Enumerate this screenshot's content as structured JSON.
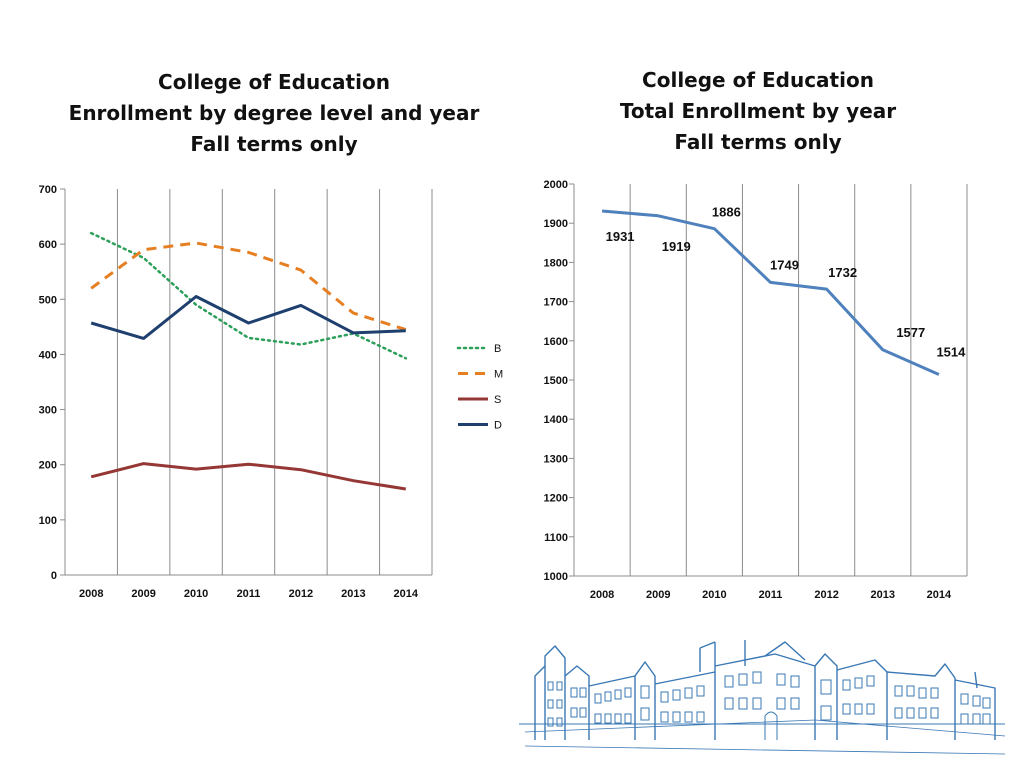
{
  "chart_data": [
    {
      "type": "line",
      "title_lines": [
        "College of Education",
        "Enrollment by degree level and year",
        "Fall terms only"
      ],
      "x": [
        "2008",
        "2009",
        "2010",
        "2011",
        "2012",
        "2013",
        "2014"
      ],
      "ylim": [
        0,
        700
      ],
      "yticks": [
        "0",
        "100",
        "200",
        "300",
        "400",
        "500",
        "600",
        "700"
      ],
      "grid": "vertical",
      "legend_position": "right",
      "series": [
        {
          "name": "B",
          "values": [
            620,
            575,
            490,
            430,
            418,
            438,
            393
          ],
          "color": "#2ca05a",
          "style": "dotted"
        },
        {
          "name": "M",
          "values": [
            520,
            590,
            602,
            585,
            553,
            475,
            445
          ],
          "color": "#e67e22",
          "style": "dashed"
        },
        {
          "name": "S",
          "values": [
            178,
            202,
            192,
            201,
            191,
            171,
            156
          ],
          "color": "#953735",
          "style": "solid"
        },
        {
          "name": "D",
          "values": [
            457,
            429,
            505,
            457,
            489,
            439,
            443
          ],
          "color": "#1f3f6e",
          "style": "solid"
        }
      ]
    },
    {
      "type": "line",
      "title_lines": [
        "College of Education",
        "Total Enrollment by year",
        "Fall terms only"
      ],
      "x": [
        "2008",
        "2009",
        "2010",
        "2011",
        "2012",
        "2013",
        "2014"
      ],
      "ylim": [
        1000,
        2000
      ],
      "yticks": [
        "1000",
        "1100",
        "1200",
        "1300",
        "1400",
        "1500",
        "1600",
        "1700",
        "1800",
        "1900",
        "2000"
      ],
      "grid": "vertical",
      "series": [
        {
          "values": [
            1931,
            1919,
            1886,
            1749,
            1732,
            1577,
            1514
          ],
          "color": "#4f81bd",
          "style": "solid"
        }
      ],
      "data_labels": [
        "1931",
        "1919",
        "1886",
        "1749",
        "1732",
        "1577",
        "1514"
      ]
    }
  ],
  "decoration": {
    "illustration_icon": "college-building-sketch-icon",
    "illustration_color": "#3a78b5"
  }
}
